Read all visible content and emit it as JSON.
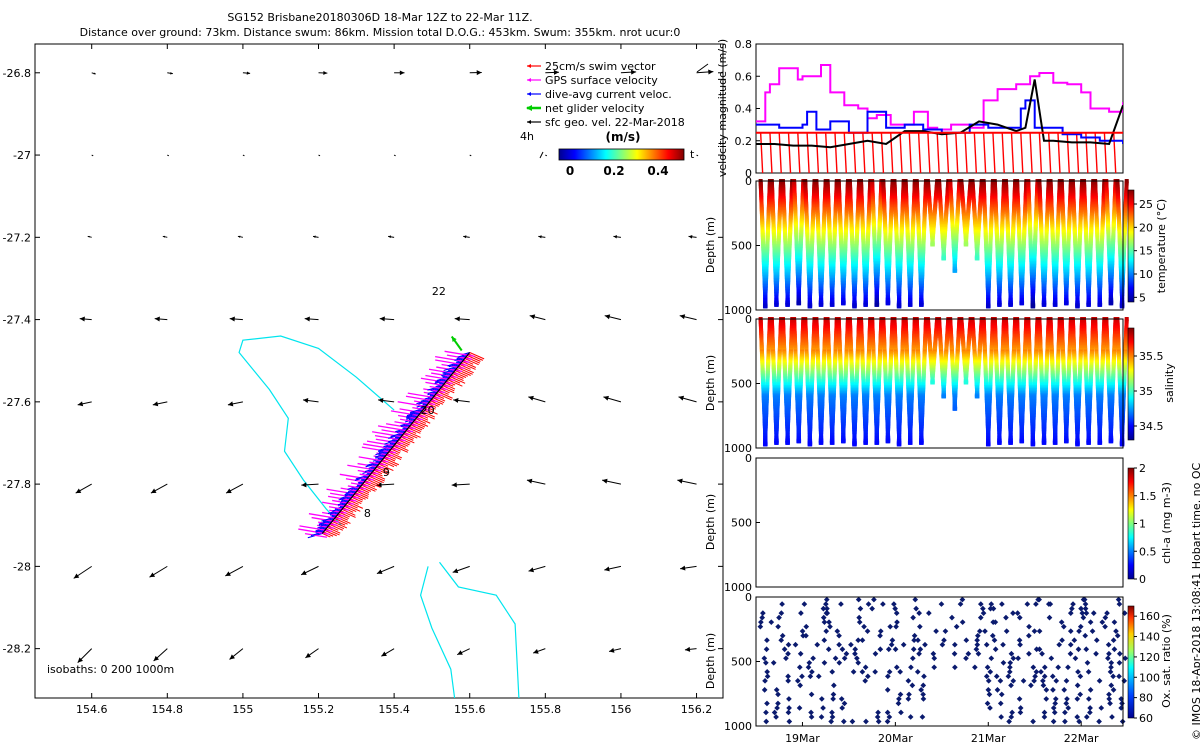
{
  "title": {
    "line1": "SG152 Brisbane20180306D 18-Mar 12Z to 22-Mar 11Z.",
    "line2": "Distance over ground: 73km. Distance swum: 86km. Mission total D.O.G.: 453km. Swum: 355km. nrot ucur:0"
  },
  "credit": "© IMOS 18-Apr-2018 13:08:41 Hobart time. no QC",
  "colors": {
    "swim": "#ff0000",
    "gps": "#ff00ff",
    "dive": "#0000ff",
    "net": "#00cc00",
    "geo": "#000000",
    "isobath": "#00e5ee",
    "oxygen": "#0a1a6e",
    "redline": "#ff0000"
  },
  "chart_data": [
    {
      "type": "scatter",
      "id": "map",
      "xlim": [
        154.45,
        156.27
      ],
      "ylim": [
        -28.32,
        -26.73
      ],
      "x_ticks": [
        "154.6",
        "154.8",
        "155",
        "155.2",
        "155.4",
        "155.6",
        "155.8",
        "156",
        "156.2"
      ],
      "y_ticks": [
        "-26.8",
        "-27",
        "-27.2",
        "-27.4",
        "-27.6",
        "-27.8",
        "-28",
        "-28.2"
      ],
      "legend": {
        "placement": "top-right",
        "entries": [
          "25cm/s swim vector",
          "GPS surface velocity",
          "dive-avg current veloc.",
          "net glider velocity",
          "sfc geo. vel. 22-Mar-2018"
        ]
      },
      "colorbar": {
        "title": "(m/s)",
        "ticks": [
          "0",
          "0.2",
          "0.4"
        ],
        "left_label": "4h",
        "right_label": "t"
      },
      "day_labels": [
        {
          "text": "22",
          "lon": 155.5,
          "lat": -27.34
        },
        {
          "text": "20",
          "lon": 155.47,
          "lat": -27.63
        },
        {
          "text": "9",
          "lon": 155.37,
          "lat": -27.78
        },
        {
          "text": "8",
          "lon": 155.32,
          "lat": -27.88
        }
      ],
      "isobaths_label": "isobaths: 0   200   1000m",
      "track": {
        "start": [
          155.21,
          -27.92
        ],
        "end": [
          155.6,
          -27.48
        ]
      },
      "geo_grid": {
        "lons": [
          154.6,
          154.8,
          155.0,
          155.2,
          155.4,
          155.6,
          155.8,
          156.0,
          156.2
        ],
        "lats": [
          -26.8,
          -27.0,
          -27.2,
          -27.4,
          -27.6,
          -27.8,
          -28.0,
          -28.2
        ]
      },
      "isobath_lines": [
        [
          [
            155.4,
            -27.62
          ],
          [
            155.3,
            -27.54
          ],
          [
            155.2,
            -27.47
          ],
          [
            155.1,
            -27.44
          ],
          [
            155.0,
            -27.45
          ],
          [
            154.99,
            -27.48
          ],
          [
            155.07,
            -27.57
          ],
          [
            155.12,
            -27.64
          ],
          [
            155.11,
            -27.72
          ],
          [
            155.16,
            -27.79
          ],
          [
            155.22,
            -27.86
          ],
          [
            155.26,
            -27.9
          ]
        ],
        [
          [
            155.52,
            -27.99
          ],
          [
            155.57,
            -28.05
          ],
          [
            155.67,
            -28.07
          ],
          [
            155.72,
            -28.14
          ],
          [
            155.73,
            -28.32
          ]
        ],
        [
          [
            155.49,
            -28.0
          ],
          [
            155.47,
            -28.07
          ],
          [
            155.5,
            -28.15
          ],
          [
            155.55,
            -28.25
          ],
          [
            155.56,
            -28.32
          ]
        ]
      ]
    },
    {
      "type": "line",
      "id": "velocity",
      "ylabel": "velocity magnitude (m/s)",
      "ylim": [
        0,
        0.8
      ],
      "y_ticks": [
        "0",
        "0.2",
        "0.4",
        "0.6",
        "0.8"
      ],
      "x_range_days": [
        18.5,
        22.45
      ],
      "series": [
        {
          "name": "GPS surface velocity",
          "color": "#ff00ff",
          "x": [
            18.5,
            18.55,
            18.6,
            18.65,
            18.75,
            18.8,
            18.95,
            19.0,
            19.2,
            19.3,
            19.45,
            19.6,
            19.7,
            19.8,
            19.95,
            20.1,
            20.2,
            20.35,
            20.45,
            20.6,
            20.8,
            20.95,
            21.1,
            21.3,
            21.45,
            21.55,
            21.7,
            21.85,
            22.0,
            22.1,
            22.3,
            22.45
          ],
          "y": [
            0.32,
            0.32,
            0.5,
            0.55,
            0.65,
            0.65,
            0.58,
            0.6,
            0.67,
            0.5,
            0.42,
            0.4,
            0.34,
            0.36,
            0.3,
            0.3,
            0.38,
            0.28,
            0.27,
            0.3,
            0.28,
            0.45,
            0.52,
            0.55,
            0.6,
            0.62,
            0.56,
            0.55,
            0.5,
            0.4,
            0.38,
            0.44
          ]
        },
        {
          "name": "dive-avg current veloc.",
          "color": "#0000ff",
          "x": [
            18.5,
            18.6,
            18.75,
            18.9,
            19.0,
            19.05,
            19.15,
            19.3,
            19.5,
            19.7,
            19.9,
            20.1,
            20.3,
            20.5,
            20.8,
            20.85,
            21.0,
            21.2,
            21.35,
            21.4,
            21.5,
            21.6,
            21.8,
            22.0,
            22.2,
            22.45
          ],
          "y": [
            0.3,
            0.3,
            0.28,
            0.28,
            0.3,
            0.38,
            0.27,
            0.32,
            0.25,
            0.38,
            0.28,
            0.3,
            0.27,
            0.25,
            0.3,
            0.3,
            0.28,
            0.28,
            0.4,
            0.45,
            0.28,
            0.28,
            0.24,
            0.22,
            0.2,
            0.18
          ]
        },
        {
          "name": "net glider velocity",
          "color": "#000000",
          "x": [
            18.5,
            18.7,
            18.9,
            19.1,
            19.3,
            19.5,
            19.7,
            19.9,
            20.1,
            20.3,
            20.5,
            20.7,
            20.9,
            21.1,
            21.3,
            21.4,
            21.5,
            21.6,
            21.7,
            21.9,
            22.1,
            22.3,
            22.45
          ],
          "y": [
            0.18,
            0.18,
            0.17,
            0.17,
            0.16,
            0.18,
            0.2,
            0.18,
            0.26,
            0.26,
            0.24,
            0.25,
            0.32,
            0.3,
            0.26,
            0.28,
            0.58,
            0.2,
            0.2,
            0.19,
            0.19,
            0.18,
            0.42
          ]
        },
        {
          "name": "25cm/s swim vector",
          "color": "#ff0000",
          "x": [
            18.5,
            22.45
          ],
          "y": [
            0.25,
            0.25
          ]
        }
      ]
    },
    {
      "type": "scatter",
      "id": "temperature",
      "ylabel": "Depth (m)",
      "ylim": [
        1000,
        0
      ],
      "y_ticks": [
        "0",
        "500",
        "1000"
      ],
      "colorbar": {
        "label": "temperature (°C)",
        "range": [
          4,
          28
        ],
        "ticks": [
          "5",
          "10",
          "15",
          "20",
          "25"
        ]
      }
    },
    {
      "type": "scatter",
      "id": "salinity",
      "ylabel": "Depth (m)",
      "ylim": [
        1000,
        0
      ],
      "y_ticks": [
        "0",
        "500",
        "1000"
      ],
      "colorbar": {
        "label": "salinity",
        "range": [
          34.3,
          35.9
        ],
        "ticks": [
          "34.5",
          "35",
          "35.5"
        ]
      }
    },
    {
      "type": "scatter",
      "id": "chla",
      "ylabel": "Depth (m)",
      "ylim": [
        1000,
        0
      ],
      "y_ticks": [
        "0",
        "500",
        "1000"
      ],
      "colorbar": {
        "label": "chl-a (mg m-3)",
        "range": [
          0,
          2
        ],
        "ticks": [
          "0",
          "0.5",
          "1",
          "1.5",
          "2"
        ]
      }
    },
    {
      "type": "scatter",
      "id": "oxygen",
      "ylabel": "Depth (m)",
      "ylim": [
        1000,
        0
      ],
      "y_ticks": [
        "0",
        "500",
        "1000"
      ],
      "x_ticks": [
        "19Mar",
        "20Mar",
        "21Mar",
        "22Mar"
      ],
      "x_tick_days": [
        19,
        20,
        21,
        22
      ],
      "colorbar": {
        "label": "Ox. sat. ratio (%)",
        "range": [
          60,
          170
        ],
        "ticks": [
          "60",
          "80",
          "100",
          "120",
          "140",
          "160"
        ]
      }
    }
  ]
}
